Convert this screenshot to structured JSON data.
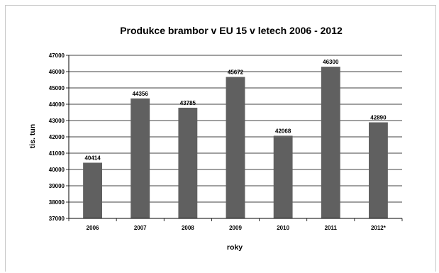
{
  "chart_data": {
    "type": "bar",
    "title": "Produkce brambor v EU 15 v letech 2006 - 2012",
    "xlabel": "roky",
    "ylabel": "tis. tun",
    "categories": [
      "2006",
      "2007",
      "2008",
      "2009",
      "2010",
      "2011",
      "2012*"
    ],
    "values": [
      40414,
      44356,
      43785,
      45672,
      42068,
      46300,
      42890
    ],
    "data_labels": [
      "40414",
      "44356",
      "43785",
      "45672",
      "42068",
      "46300",
      "42890"
    ],
    "ylim": [
      37000,
      47000
    ],
    "yticks": [
      37000,
      38000,
      39000,
      40000,
      41000,
      42000,
      43000,
      44000,
      45000,
      46000,
      47000
    ],
    "ytick_labels": [
      "37000",
      "38000",
      "39000",
      "40000",
      "41000",
      "42000",
      "43000",
      "44000",
      "45000",
      "46000",
      "47000"
    ],
    "grid": true,
    "legend": "none",
    "bar_color": "#606060",
    "grid_color": "#000000"
  }
}
